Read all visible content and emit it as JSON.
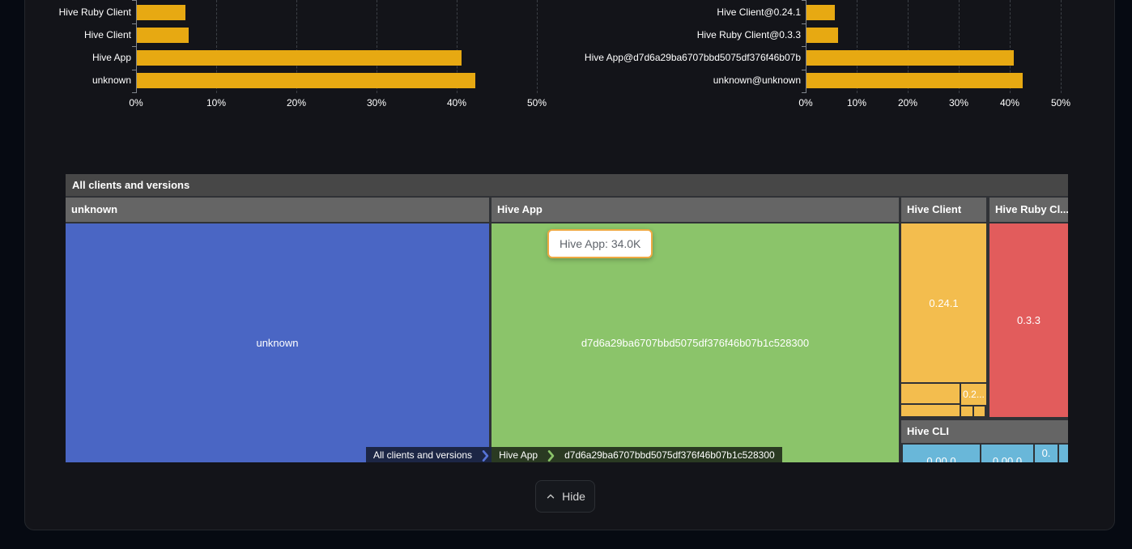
{
  "page": {
    "background": "#060a12",
    "card_background": "#131419"
  },
  "chart_data": [
    {
      "id": "clients-usage",
      "type": "bar",
      "orientation": "horizontal",
      "categories": [
        "Hive Ruby Client",
        "Hive Client",
        "Hive App",
        "unknown"
      ],
      "values": [
        6.1,
        6.5,
        40.6,
        42.3
      ],
      "unit": "%",
      "xlim": [
        0,
        50
      ],
      "x_ticks": [
        "0%",
        "10%",
        "20%",
        "30%",
        "40%",
        "50%"
      ],
      "bar_color": "#e7a912",
      "grid": "dashed-vertical"
    },
    {
      "id": "client-versions-usage",
      "type": "bar",
      "orientation": "horizontal",
      "categories": [
        "Hive Client@0.24.1",
        "Hive Ruby Client@0.3.3",
        "Hive App@d7d6a29ba6707bbd5075df376f46b07b",
        "unknown@unknown"
      ],
      "values": [
        5.6,
        6.2,
        40.8,
        42.5
      ],
      "unit": "%",
      "xlim": [
        0,
        50
      ],
      "x_ticks": [
        "0%",
        "10%",
        "20%",
        "30%",
        "40%",
        "50%"
      ],
      "bar_color": "#e7a912",
      "grid": "dashed-vertical"
    },
    {
      "id": "clients-treemap",
      "type": "treemap",
      "title": "All clients and versions",
      "sections": [
        {
          "name": "unknown",
          "color": "#4a66c4",
          "blocks": [
            {
              "label": "unknown"
            }
          ]
        },
        {
          "name": "Hive App",
          "color": "#8bc46a",
          "blocks": [
            {
              "label": "d7d6a29ba6707bbd5075df376f46b07b1c528300",
              "value": "34.0K"
            }
          ]
        },
        {
          "name": "Hive Client",
          "color": "#f3bd4e",
          "blocks": [
            {
              "label": "0.24.1"
            },
            {
              "label": ""
            },
            {
              "label": "0.2..."
            },
            {
              "label": ""
            },
            {
              "label": ""
            },
            {
              "label": ""
            }
          ]
        },
        {
          "name": "Hive Ruby Cl...",
          "color": "#e25c5c",
          "blocks": [
            {
              "label": "0.3.3"
            }
          ]
        },
        {
          "name": "Hive CLI",
          "color": "#69b7d9",
          "blocks": [
            {
              "label": "0.00.0"
            },
            {
              "label": "0.00.0"
            },
            {
              "label": "0."
            },
            {
              "label": ""
            }
          ]
        }
      ],
      "breadcrumb": [
        "All clients and versions",
        "Hive App",
        "d7d6a29ba6707bbd5075df376f46b07b1c528300"
      ],
      "header_color": "#474747",
      "section_header_color": "#656565"
    }
  ],
  "tooltip": {
    "text": "Hive App: 34.0K"
  },
  "footer": {
    "hide_label": "Hide"
  }
}
